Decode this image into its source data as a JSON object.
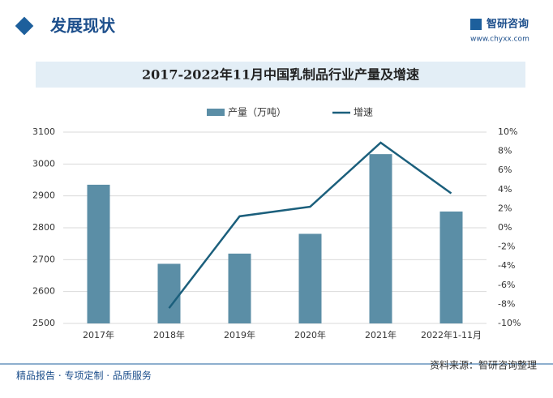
{
  "header": {
    "title": "发展现状",
    "brand": "智研咨询",
    "url": "www.chyxx.com"
  },
  "chart_data": {
    "type": "combo",
    "title": "2017-2022年11月中国乳制品行业产量及增速",
    "categories": [
      "2017年",
      "2018年",
      "2019年",
      "2020年",
      "2021年",
      "2022年1-11月"
    ],
    "series": [
      {
        "name": "产量（万吨）",
        "type": "bar",
        "color": "#5b8ea6",
        "values": [
          2935,
          2687,
          2719,
          2781,
          3031,
          2851
        ]
      },
      {
        "name": "增速",
        "type": "line",
        "axis": "y2",
        "color": "#1b5f7c",
        "values": [
          null,
          -8.4,
          1.2,
          2.2,
          8.9,
          3.6
        ]
      }
    ],
    "ylim": [
      2500,
      3100
    ],
    "yticks": [
      2500,
      2600,
      2700,
      2800,
      2900,
      3000,
      3100
    ],
    "y2lim": [
      -10,
      10
    ],
    "y2ticks": [
      {
        "value": -10,
        "label": "-10%"
      },
      {
        "value": -8,
        "label": "-8%"
      },
      {
        "value": -6,
        "label": "-6%"
      },
      {
        "value": -4,
        "label": "-4%"
      },
      {
        "value": -2,
        "label": "-2%"
      },
      {
        "value": 0,
        "label": "0%"
      },
      {
        "value": 2,
        "label": "2%"
      },
      {
        "value": 4,
        "label": "4%"
      },
      {
        "value": 6,
        "label": "6%"
      },
      {
        "value": 8,
        "label": "8%"
      },
      {
        "value": 10,
        "label": "10%"
      }
    ],
    "grid": true,
    "legend": "top"
  },
  "footer": {
    "slogan": "精品报告 · 专项定制 · 品质服务",
    "source": "资料来源：智研咨询整理"
  }
}
